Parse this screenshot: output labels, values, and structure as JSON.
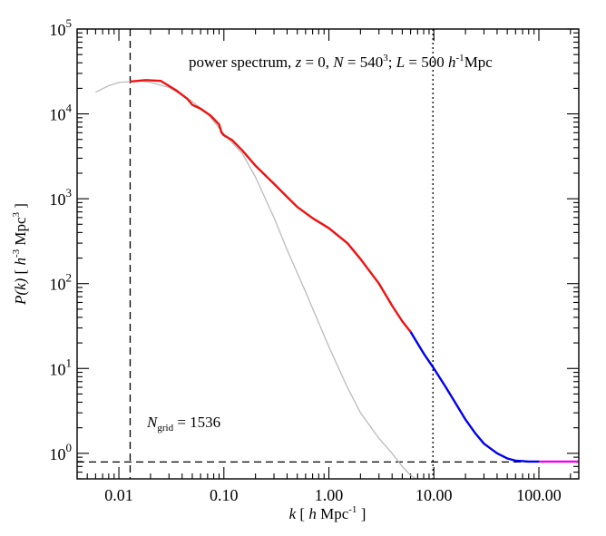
{
  "chart_data": {
    "type": "line",
    "xscale": "log",
    "yscale": "log",
    "xlim": [
      0.004,
      240
    ],
    "ylim": [
      0.5,
      100000
    ],
    "xlabel_parts": [
      "k",
      "[",
      "h",
      "Mpc",
      "-1",
      "]"
    ],
    "ylabel_parts": [
      "P(k)",
      "[",
      "h",
      "-3",
      "Mpc",
      "3",
      "]"
    ],
    "x_ticks": [
      {
        "value": 0.01,
        "label": "0.01"
      },
      {
        "value": 0.1,
        "label": "0.10"
      },
      {
        "value": 1,
        "label": "1.00"
      },
      {
        "value": 10,
        "label": "10.00"
      },
      {
        "value": 100,
        "label": "100.00"
      }
    ],
    "y_ticks": [
      {
        "value": 1,
        "base": "10",
        "exp": "0"
      },
      {
        "value": 10,
        "base": "10",
        "exp": "1"
      },
      {
        "value": 100,
        "base": "10",
        "exp": "2"
      },
      {
        "value": 1000,
        "base": "10",
        "exp": "3"
      },
      {
        "value": 10000,
        "base": "10",
        "exp": "4"
      },
      {
        "value": 100000,
        "base": "10",
        "exp": "5"
      }
    ],
    "title_parts": {
      "t1": "power spectrum, ",
      "z": "z",
      "t2": " = 0,  ",
      "N": "N",
      "t3": " = 540",
      "t3sup": "3",
      "t4": "; ",
      "L": "L",
      "t5": " = 500 ",
      "h": "h",
      "hsup": "-1",
      "t6": "Mpc"
    },
    "ngrid_parts": {
      "N": "N",
      "sub": "grid",
      "rest": " = 1536"
    },
    "reference_lines": [
      {
        "name": "dashed-vertical",
        "axis": "x",
        "value": 0.0128,
        "style": "dashed"
      },
      {
        "name": "dotted-vertical",
        "axis": "x",
        "value": 9.8,
        "style": "dotted"
      },
      {
        "name": "dashed-horizontal",
        "axis": "y",
        "value": 0.79,
        "style": "dashed"
      }
    ],
    "series": [
      {
        "color": "#bbbbbb",
        "points": [
          [
            0.006,
            18000
          ],
          [
            0.008,
            21500
          ],
          [
            0.01,
            23500
          ],
          [
            0.0128,
            24000
          ],
          [
            0.016,
            24500
          ],
          [
            0.02,
            23500
          ],
          [
            0.03,
            20500
          ],
          [
            0.05,
            14000
          ],
          [
            0.07,
            10000
          ],
          [
            0.1,
            5800
          ],
          [
            0.15,
            3400
          ],
          [
            0.2,
            1800
          ],
          [
            0.3,
            600
          ],
          [
            0.4,
            250
          ],
          [
            0.6,
            80
          ],
          [
            1,
            18
          ],
          [
            1.5,
            6
          ],
          [
            2,
            3
          ],
          [
            3,
            1.5
          ],
          [
            4,
            1
          ],
          [
            5,
            0.7
          ],
          [
            6,
            0.55
          ],
          [
            6.8,
            0.5
          ]
        ]
      },
      {
        "color": "#ee1111",
        "points": [
          [
            0.0128,
            24000
          ],
          [
            0.015,
            24500
          ],
          [
            0.018,
            25000
          ],
          [
            0.025,
            24500
          ],
          [
            0.035,
            19000
          ],
          [
            0.045,
            15000
          ],
          [
            0.05,
            12800
          ],
          [
            0.06,
            11500
          ],
          [
            0.075,
            9500
          ],
          [
            0.09,
            7500
          ],
          [
            0.095,
            6000
          ],
          [
            0.1,
            5600
          ],
          [
            0.12,
            4900
          ],
          [
            0.15,
            3700
          ],
          [
            0.2,
            2450
          ],
          [
            0.3,
            1500
          ],
          [
            0.4,
            1050
          ],
          [
            0.5,
            800
          ],
          [
            0.7,
            590
          ],
          [
            1,
            450
          ],
          [
            1.5,
            300
          ],
          [
            2,
            195
          ],
          [
            3,
            100
          ],
          [
            4,
            55
          ],
          [
            5,
            36
          ],
          [
            6,
            27
          ]
        ]
      },
      {
        "color": "#0000ee",
        "points": [
          [
            6,
            27
          ],
          [
            8,
            15
          ],
          [
            10,
            10
          ],
          [
            13,
            6
          ],
          [
            15,
            4.5
          ],
          [
            20,
            2.5
          ],
          [
            25,
            1.7
          ],
          [
            30,
            1.3
          ],
          [
            40,
            1.0
          ],
          [
            50,
            0.87
          ],
          [
            60,
            0.82
          ],
          [
            70,
            0.81
          ],
          [
            80,
            0.8
          ],
          [
            100,
            0.8
          ]
        ]
      },
      {
        "color": "#ee00ee",
        "points": [
          [
            100,
            0.8
          ],
          [
            150,
            0.8
          ],
          [
            240,
            0.8
          ]
        ]
      }
    ]
  }
}
